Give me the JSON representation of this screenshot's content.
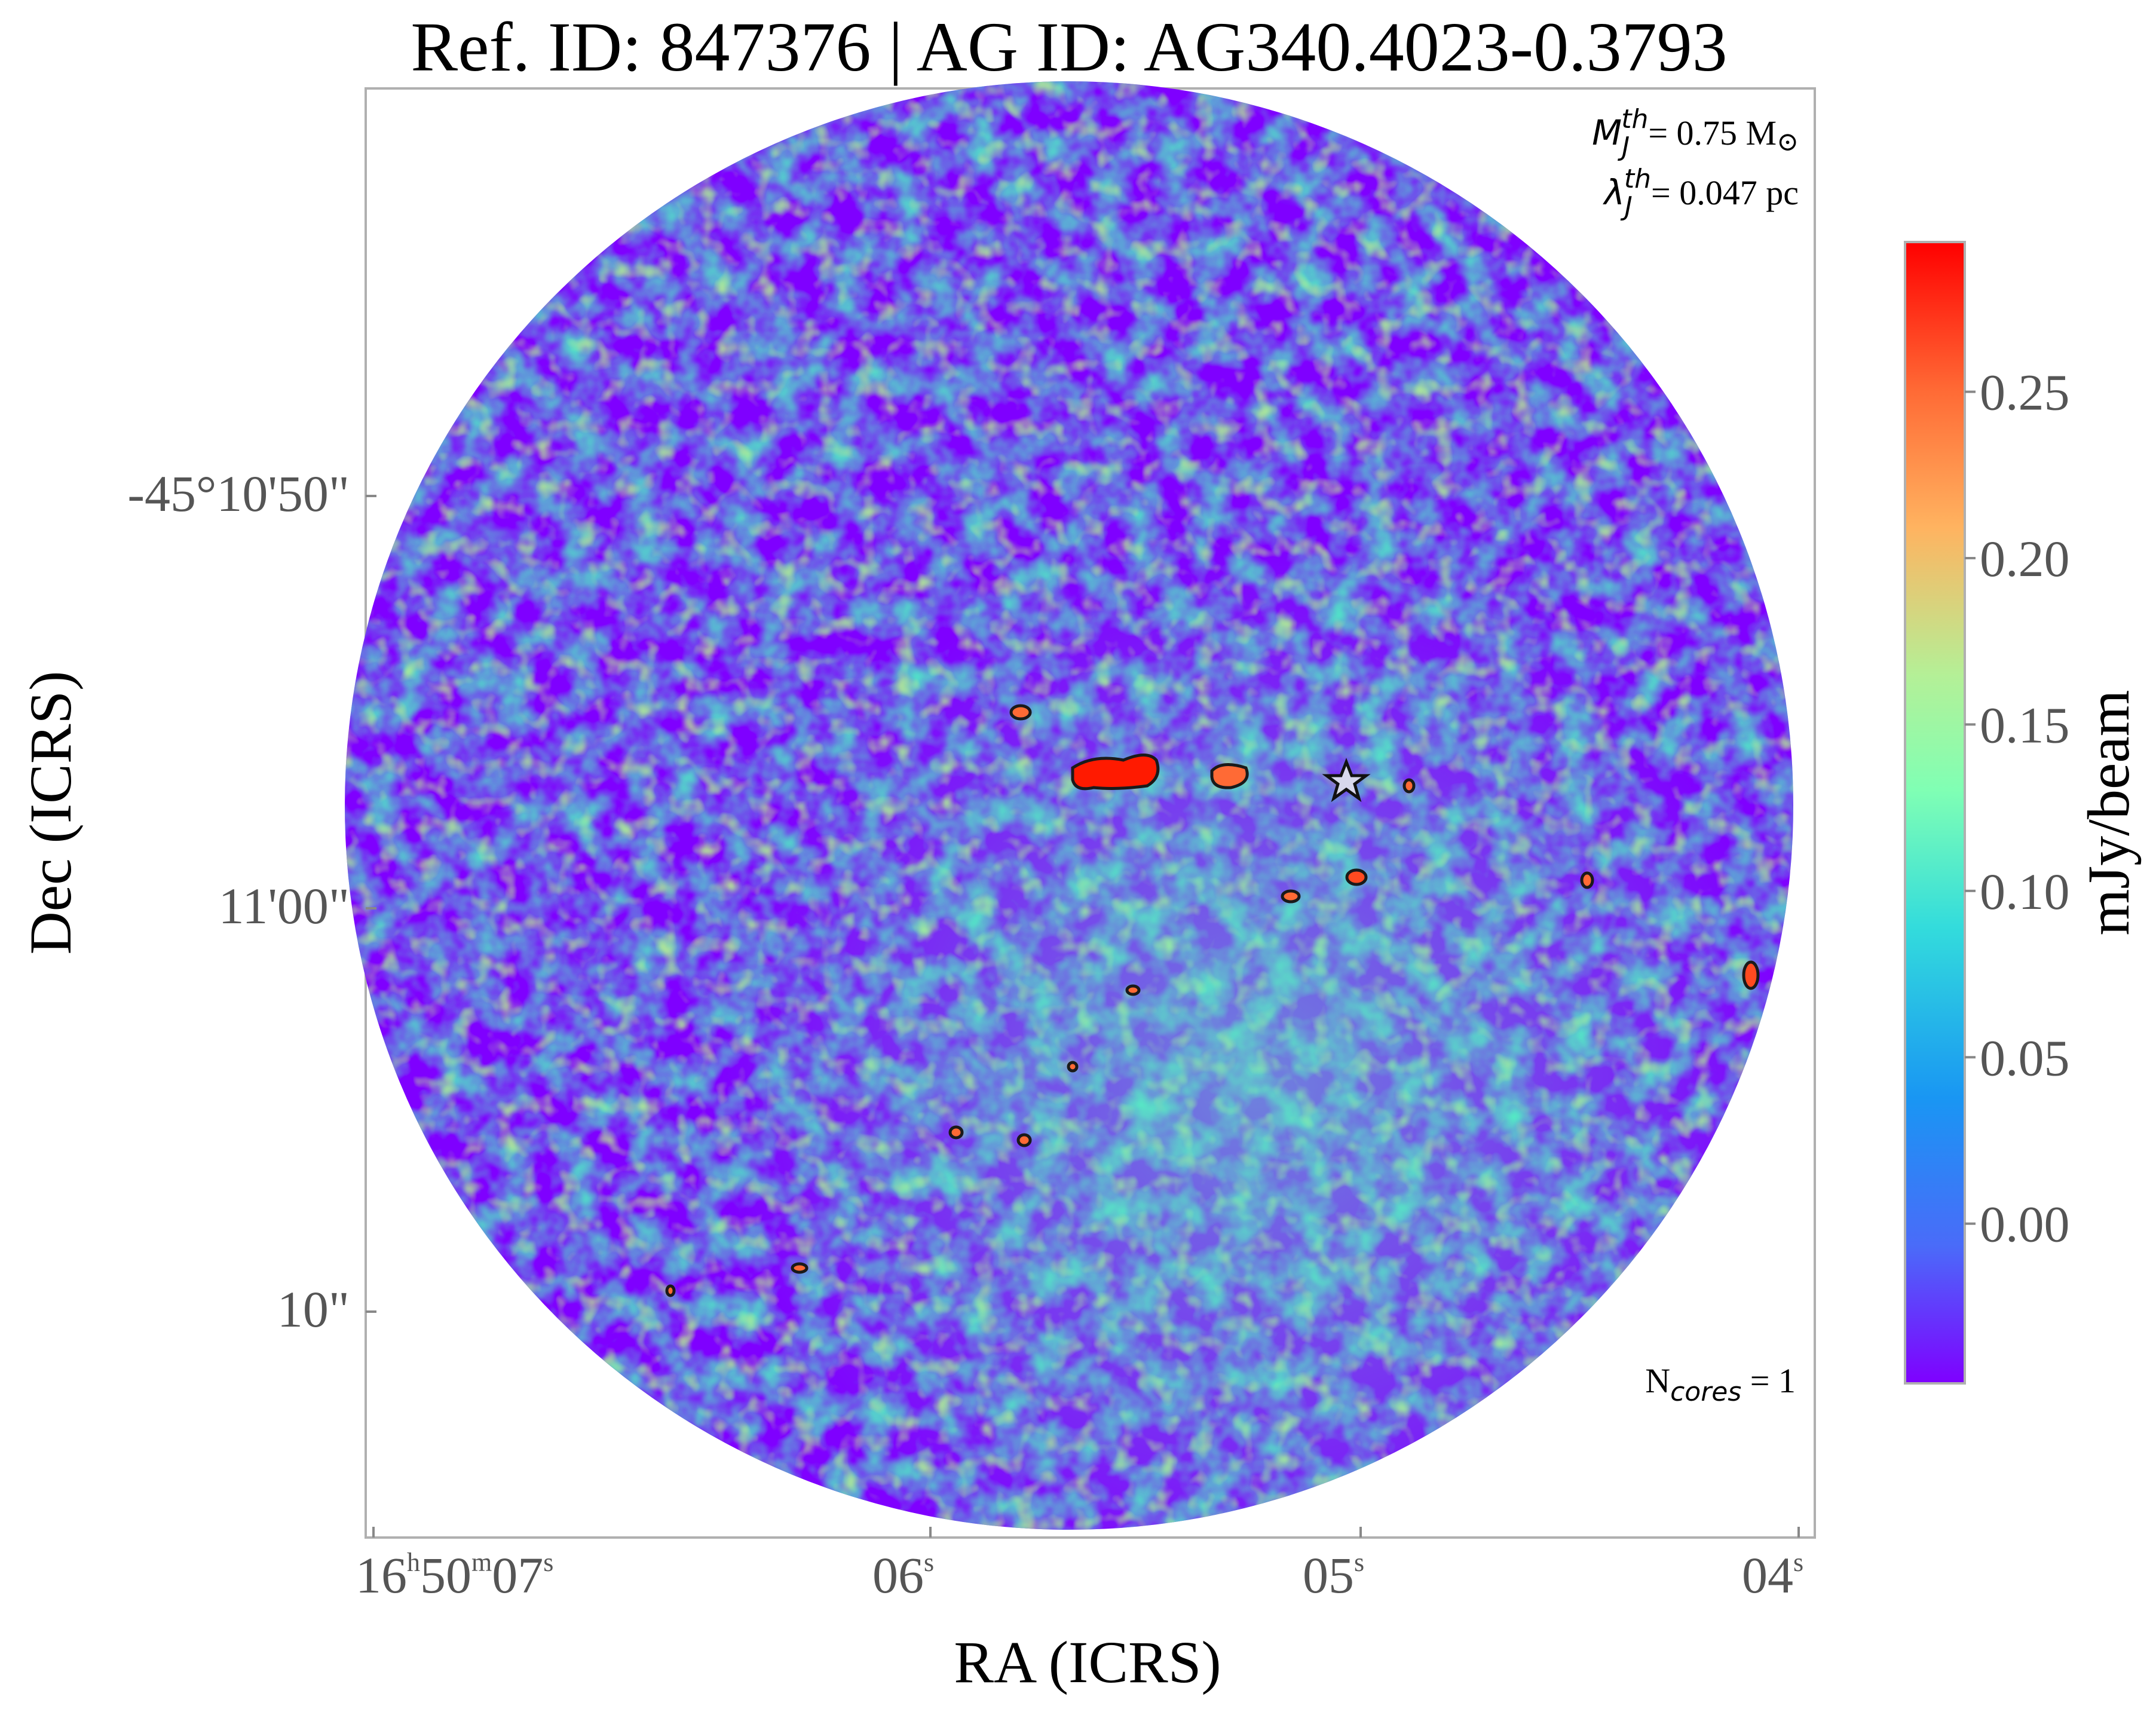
{
  "title": "Ref. ID: 847376 | AG ID: AG340.4023-0.3793",
  "annotations": {
    "mass_symbol": "M",
    "mass_sub": "J",
    "mass_sup": "th",
    "mass_value": "= 0.75 M",
    "mass_unit_symbol": "⊙",
    "length_symbol": "λ",
    "length_sub": "J",
    "length_sup": "th",
    "length_value": "= 0.047 pc",
    "ncores_prefix": "N",
    "ncores_sub": "cores",
    "ncores_value": " = 1"
  },
  "axes": {
    "x_label": "RA (ICRS)",
    "y_label": "Dec (ICRS)",
    "x_ticks": [
      {
        "h": "16",
        "hs": "h",
        "m": "50",
        "ms": "m",
        "s": "07",
        "ss": "s"
      },
      {
        "s": "06",
        "ss": "s"
      },
      {
        "s": "05",
        "ss": "s"
      },
      {
        "s": "04",
        "ss": "s"
      }
    ],
    "y_ticks": [
      "-45°10'50\"",
      "11'00\"",
      "10\""
    ]
  },
  "colorbar": {
    "label": "mJy/beam",
    "ticks": [
      "0.25",
      "0.20",
      "0.15",
      "0.10",
      "0.05",
      "0.00"
    ],
    "tick_values": [
      0.25,
      0.2,
      0.15,
      0.1,
      0.05,
      0.0
    ],
    "range": [
      -0.048,
      0.295
    ],
    "colormap": "rainbow",
    "colors": [
      "#7f00ff",
      "#4a6bf9",
      "#1996f3",
      "#33dcdc",
      "#80ffb4",
      "#b4f097",
      "#ffb360",
      "#ff6a35",
      "#ff0000"
    ]
  },
  "chart_data": {
    "type": "heatmap",
    "colormap": "rainbow",
    "value_label": "mJy/beam",
    "marker": "star",
    "cores": 1
  }
}
